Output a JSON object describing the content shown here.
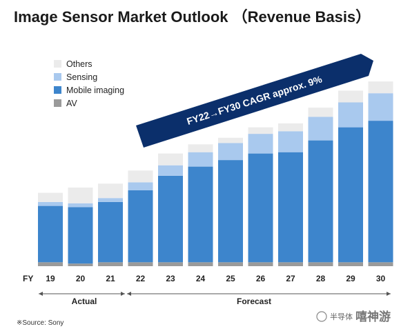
{
  "title": "Image Sensor Market Outlook （Revenue Basis）",
  "source": "※Source: Sony",
  "watermark": "半导体",
  "watermark_brand": "嘻神游",
  "colors": {
    "Others": "#ebebeb",
    "Sensing": "#a9c9ee",
    "Mobile imaging": "#3d85cc",
    "AV": "#9a9a9a",
    "arrow": "#0b2f6b"
  },
  "chart_data": {
    "type": "bar",
    "stacked": true,
    "x_axis_title": "FY",
    "categories": [
      "19",
      "20",
      "21",
      "22",
      "23",
      "24",
      "25",
      "26",
      "27",
      "28",
      "29",
      "30"
    ],
    "series": [
      {
        "name": "AV",
        "values": [
          3,
          2,
          3,
          3,
          3,
          3,
          3,
          3,
          3,
          3,
          3,
          3
        ]
      },
      {
        "name": "Mobile imaging",
        "values": [
          43,
          43,
          46,
          55,
          66,
          73,
          78,
          83,
          84,
          93,
          103,
          108
        ]
      },
      {
        "name": "Sensing",
        "values": [
          3,
          3,
          3,
          6,
          8,
          11,
          13,
          15,
          16,
          18,
          19,
          21
        ]
      },
      {
        "name": "Others",
        "values": [
          7,
          12,
          11,
          9,
          9,
          6,
          4,
          5,
          6,
          7,
          9,
          9
        ]
      }
    ],
    "legend": [
      "Others",
      "Sensing",
      "Mobile imaging",
      "AV"
    ],
    "legend_position": "top-left",
    "periods": [
      {
        "label": "Actual",
        "categories": [
          "19",
          "20",
          "21"
        ]
      },
      {
        "label": "Forecast",
        "categories": [
          "22",
          "23",
          "24",
          "25",
          "26",
          "27",
          "28",
          "29",
          "30"
        ]
      }
    ],
    "annotation": "FY22→FY30  CAGR approx. 9%",
    "grid": false
  }
}
